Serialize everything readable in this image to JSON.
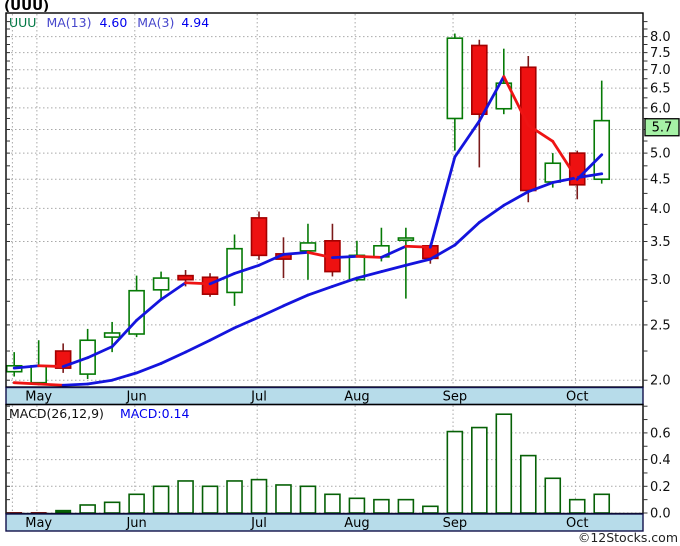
{
  "header": {
    "title": "(UUU)"
  },
  "watermark": "©12Stocks.com",
  "chart_data": {
    "type": "candlestick",
    "symbol": "UUU",
    "scale": "log",
    "legend": {
      "symbol": "UUU",
      "ma13_label": "MA(13)",
      "ma13_value": "4.60",
      "ma3_label": "MA(3)",
      "ma3_value": "4.94"
    },
    "price_axis": {
      "range": [
        1.946,
        8.8
      ],
      "labels": [
        "8.0",
        "7.5",
        "7.0",
        "6.5",
        "6.0",
        "5.0",
        "4.5",
        "4.0",
        "3.5",
        "3.0",
        "2.5",
        "2.0"
      ],
      "minor_tick_step": 0.25,
      "gridline_step": 0.5,
      "current_price": "5.7"
    },
    "months": [
      {
        "label": "May",
        "i": 1
      },
      {
        "label": "Jun",
        "i": 5
      },
      {
        "label": "Jul",
        "i": 10
      },
      {
        "label": "Aug",
        "i": 14
      },
      {
        "label": "Sep",
        "i": 18
      },
      {
        "label": "Oct",
        "i": 23
      }
    ],
    "extra_gridline_indices": [
      0
    ],
    "ohlc_order": "open,high,low,close",
    "candles": [
      [
        2.07,
        2.24,
        2.03,
        2.12
      ],
      [
        1.98,
        2.35,
        1.96,
        2.12
      ],
      [
        2.25,
        2.32,
        2.06,
        2.1
      ],
      [
        2.05,
        2.46,
        2.01,
        2.35
      ],
      [
        2.38,
        2.53,
        2.24,
        2.42
      ],
      [
        2.41,
        3.05,
        2.38,
        2.87
      ],
      [
        2.88,
        3.1,
        2.78,
        3.02
      ],
      [
        3.05,
        3.12,
        2.92,
        3.0
      ],
      [
        3.03,
        3.08,
        2.8,
        2.83
      ],
      [
        2.85,
        3.6,
        2.7,
        3.4
      ],
      [
        3.85,
        3.95,
        3.25,
        3.31
      ],
      [
        3.33,
        3.56,
        3.02,
        3.26
      ],
      [
        3.37,
        3.76,
        3.0,
        3.48
      ],
      [
        3.51,
        3.76,
        3.04,
        3.1
      ],
      [
        3.0,
        3.51,
        2.98,
        3.31
      ],
      [
        3.29,
        3.7,
        3.23,
        3.44
      ],
      [
        3.52,
        3.7,
        2.78,
        3.55
      ],
      [
        3.44,
        3.47,
        3.2,
        3.27
      ],
      [
        5.75,
        8.1,
        5.05,
        7.95
      ],
      [
        7.72,
        7.9,
        4.72,
        5.85
      ],
      [
        5.98,
        7.62,
        5.85,
        6.63
      ],
      [
        7.07,
        7.4,
        4.1,
        4.3
      ],
      [
        4.45,
        5.0,
        4.35,
        4.8
      ],
      [
        5.0,
        5.05,
        4.15,
        4.4
      ],
      [
        4.5,
        6.7,
        4.42,
        5.7
      ]
    ],
    "ma13": [
      1.98,
      1.97,
      1.96,
      1.97,
      2.0,
      2.06,
      2.14,
      2.24,
      2.35,
      2.47,
      2.58,
      2.7,
      2.82,
      2.92,
      3.02,
      3.1,
      3.18,
      3.26,
      3.45,
      3.78,
      4.05,
      4.28,
      4.44,
      4.53,
      4.6
    ],
    "ma3_seed": [
      2.1,
      2.12
    ],
    "macd": {
      "label": "MACD(26,12,9)",
      "value_label": "MACD:0.14",
      "values": [
        -0.02,
        -0.02,
        0.02,
        0.06,
        0.08,
        0.14,
        0.2,
        0.24,
        0.2,
        0.24,
        0.25,
        0.21,
        0.2,
        0.14,
        0.11,
        0.1,
        0.1,
        0.05,
        0.61,
        0.64,
        0.74,
        0.43,
        0.26,
        0.1,
        0.14
      ],
      "axis_labels": [
        "0.6",
        "0.4",
        "0.2",
        "0.0"
      ],
      "minor_tick_step": 0.1,
      "gridline_levels": [
        0.0,
        0.2,
        0.4,
        0.6
      ]
    },
    "colors": {
      "up": "#067a06",
      "up_fill": "#ffffff",
      "down_border": "#a40000",
      "down_fill": "#ee1111",
      "down_wick": "#7b1a1a",
      "ma_up": "#1414dd",
      "ma_down": "#ee1414",
      "grid": "#a9a9a9",
      "frame": "#000000",
      "band_fill": "#b7dcea",
      "band_border": "#10104a",
      "badge_fill": "#a6f2a6",
      "macd_bar": "#066006",
      "macd_neg": "#cc1111",
      "legend_symbol": "#007744",
      "legend_ma": "#4747cc",
      "legend_value": "#0000ee",
      "axis_text": "#111111"
    }
  }
}
